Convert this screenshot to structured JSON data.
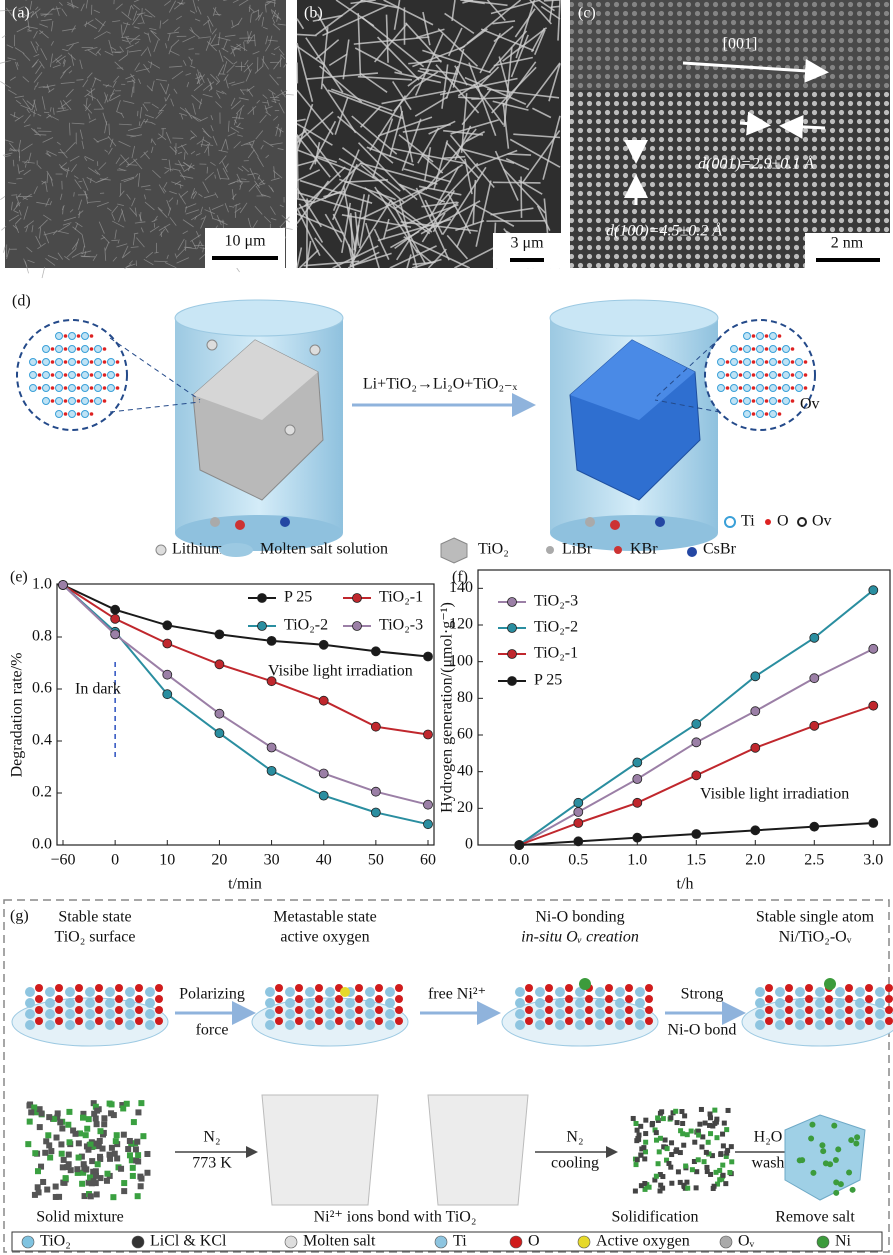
{
  "panel_a": {
    "label": "(a)",
    "scale": "10 μm"
  },
  "panel_b": {
    "label": "(b)",
    "scale": "3 μm"
  },
  "panel_c": {
    "label": "(c)",
    "direction": "[001]",
    "d001": "d(001)=2.9±0.1 Å",
    "d100": "d(100)=4.5±0.2 Å",
    "scale": "2 nm"
  },
  "panel_d": {
    "label": "(d)",
    "reaction": "Li+TiO₂→Li₂O+TiO₂₋ₓ",
    "ov": "Ov",
    "inset_legend": [
      "Ti",
      "O",
      "Ov"
    ],
    "legend": [
      "Lithium",
      "Molten salt solution",
      "TiO₂",
      "LiBr",
      "KBr",
      "CsBr"
    ]
  },
  "chart_data": [
    {
      "type": "line",
      "panel_label": "(e)",
      "categories": [
        "−60",
        "0",
        "10",
        "20",
        "30",
        "40",
        "50",
        "60"
      ],
      "series": [
        {
          "name": "P 25",
          "color": "#1a1a1a",
          "values": [
            1.0,
            0.905,
            0.845,
            0.81,
            0.785,
            0.77,
            0.745,
            0.725
          ]
        },
        {
          "name": "TiO₂-1",
          "color": "#c0272d",
          "values": [
            1.0,
            0.87,
            0.775,
            0.695,
            0.63,
            0.555,
            0.455,
            0.425
          ]
        },
        {
          "name": "TiO₂-2",
          "color": "#2a8ea0",
          "values": [
            1.0,
            0.82,
            0.58,
            0.43,
            0.285,
            0.19,
            0.125,
            0.08
          ]
        },
        {
          "name": "TiO₂-3",
          "color": "#9b7fa6",
          "values": [
            1.0,
            0.81,
            0.655,
            0.505,
            0.375,
            0.275,
            0.205,
            0.155
          ]
        }
      ],
      "ylim": [
        0,
        1
      ],
      "yticks": [
        {
          "value": 0,
          "label": "0.0"
        },
        0.2,
        0.4,
        0.6,
        0.8,
        {
          "value": 1,
          "label": "1.0"
        }
      ],
      "xlabel": "t/min",
      "ylabel": "Degradation rate/%",
      "annotations": [
        "In dark",
        "Visibe light irradiation"
      ],
      "legend": "upper right"
    },
    {
      "type": "line",
      "panel_label": "(f)",
      "x": [
        0,
        0.5,
        1,
        1.5,
        2,
        2.5,
        3
      ],
      "series": [
        {
          "name": "TiO₂-3",
          "color": "#9b7fa6",
          "values": [
            0,
            18,
            36,
            56,
            73,
            91,
            107
          ]
        },
        {
          "name": "TiO₂-2",
          "color": "#2a8ea0",
          "values": [
            0,
            23,
            45,
            66,
            92,
            113,
            139
          ]
        },
        {
          "name": "TiO₂-1",
          "color": "#c0272d",
          "values": [
            0,
            12,
            23,
            38,
            53,
            65,
            76
          ]
        },
        {
          "name": "P 25",
          "color": "#1a1a1a",
          "values": [
            0,
            2,
            4,
            6,
            8,
            10,
            12
          ]
        }
      ],
      "xlim": [
        -0.35,
        3.15
      ],
      "xticks": [
        {
          "value": 0,
          "label": "0.0"
        },
        0.5,
        {
          "value": 1,
          "label": "1.0"
        },
        1.5,
        {
          "value": 2,
          "label": "2.0"
        },
        2.5,
        {
          "value": 3,
          "label": "3.0"
        }
      ],
      "ylim": [
        0,
        150
      ],
      "yticks": [
        0,
        20,
        40,
        60,
        80,
        100,
        120,
        140
      ],
      "xlabel": "t/h",
      "ylabel": "Hydrogen generation/(μmol·g⁻¹)",
      "annotations": [
        "Visible light irradiation"
      ],
      "legend": "upper left"
    }
  ],
  "panel_g": {
    "label": "(g)",
    "states": [
      [
        "Stable state",
        "TiO₂ surface"
      ],
      [
        "Metastable state",
        "active oxygen"
      ],
      [
        "Ni-O bonding",
        "in-situ Oᵥ creation"
      ],
      [
        "Stable single atom",
        "Ni/TiO₂-Oᵥ"
      ]
    ],
    "transitions": [
      [
        "Polarizing",
        "force"
      ],
      [
        "free Ni²⁺"
      ],
      [
        "Strong",
        "Ni-O bond"
      ]
    ],
    "conditions": [
      [
        "N₂",
        "773 K"
      ],
      [
        "N₂",
        "cooling"
      ],
      [
        "H₂O",
        "wash"
      ]
    ],
    "captions": [
      "Solid mixture",
      "Ni²⁺ ions bond with TiO₂",
      "Solidification",
      "Remove salt"
    ],
    "legend": [
      "TiO₂",
      "LiCl & KCl",
      "Molten salt",
      "Ti",
      "O",
      "Active oxygen",
      "Oᵥ",
      "Ni"
    ]
  }
}
